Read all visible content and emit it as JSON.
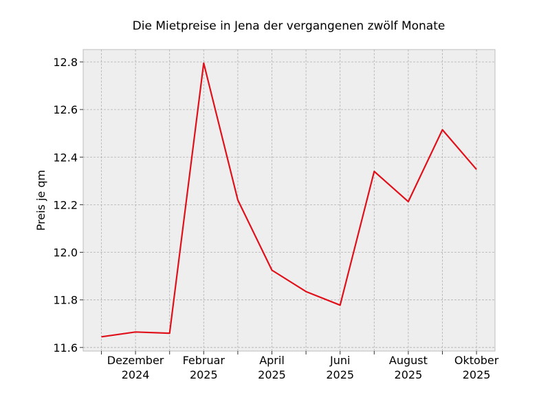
{
  "chart_data": {
    "type": "line",
    "title": "Die Mietpreise in Jena der vergangenen zwölf Monate",
    "xlabel": "",
    "ylabel": "Preis je qm",
    "x": [
      "2024-11",
      "2024-12",
      "2025-01",
      "2025-02",
      "2025-03",
      "2025-04",
      "2025-05",
      "2025-06",
      "2025-07",
      "2025-08",
      "2025-09",
      "2025-10"
    ],
    "xtick_labels": [
      {
        "x": "2024-12",
        "line1": "Dezember",
        "line2": "2024"
      },
      {
        "x": "2025-02",
        "line1": "Februar",
        "line2": "2025"
      },
      {
        "x": "2025-04",
        "line1": "April",
        "line2": "2025"
      },
      {
        "x": "2025-06",
        "line1": "Juni",
        "line2": "2025"
      },
      {
        "x": "2025-08",
        "line1": "August",
        "line2": "2025"
      },
      {
        "x": "2025-10",
        "line1": "Oktober",
        "line2": "2025"
      }
    ],
    "series": [
      {
        "values": [
          11.645,
          11.665,
          11.66,
          12.795,
          12.22,
          11.925,
          11.835,
          11.778,
          12.34,
          12.213,
          12.515,
          12.348
        ],
        "color": "#e0101a"
      }
    ],
    "yticks": [
      "11.6",
      "11.8",
      "12.0",
      "12.2",
      "12.4",
      "12.6",
      "12.8"
    ],
    "ylim": [
      11.585,
      12.852
    ],
    "grid": true,
    "background": "#eeeeee"
  }
}
